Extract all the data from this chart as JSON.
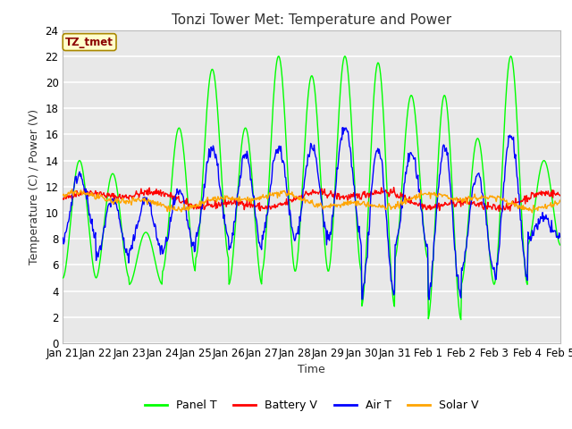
{
  "title": "Tonzi Tower Met: Temperature and Power",
  "xlabel": "Time",
  "ylabel": "Temperature (C) / Power (V)",
  "ylim": [
    0,
    24
  ],
  "yticks": [
    0,
    2,
    4,
    6,
    8,
    10,
    12,
    14,
    16,
    18,
    20,
    22,
    24
  ],
  "xtick_labels": [
    "Jan 21",
    "Jan 22",
    "Jan 23",
    "Jan 24",
    "Jan 25",
    "Jan 26",
    "Jan 27",
    "Jan 28",
    "Jan 29",
    "Jan 30",
    "Jan 31",
    "Feb 1",
    "Feb 2",
    "Feb 3",
    "Feb 4",
    "Feb 5"
  ],
  "annotation_text": "TZ_tmet",
  "annotation_color": "#8B0000",
  "annotation_bg": "#FFFFCC",
  "annotation_edge": "#AA8800",
  "fig_bg": "#FFFFFF",
  "plot_bg": "#E8E8E8",
  "grid_color": "#FFFFFF",
  "colors": {
    "Panel T": "#00FF00",
    "Battery V": "#FF0000",
    "Air T": "#0000FF",
    "Solar V": "#FFA500"
  },
  "linewidth": 1.0,
  "title_fontsize": 11,
  "label_fontsize": 9,
  "tick_fontsize": 8.5,
  "legend_fontsize": 9
}
